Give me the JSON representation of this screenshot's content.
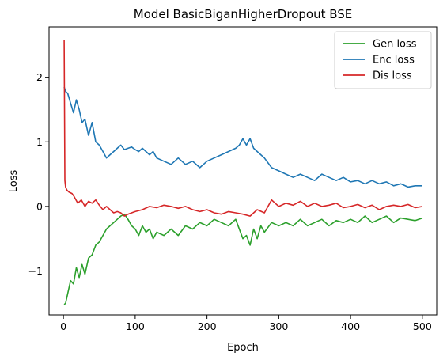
{
  "chart_data": {
    "type": "line",
    "title": "Model BasicBiganHigherDropout BSE",
    "xlabel": "Epoch",
    "ylabel": "Loss",
    "xlim": [
      -20,
      520
    ],
    "ylim": [
      -1.68,
      2.78
    ],
    "xticks": [
      0,
      100,
      200,
      300,
      400,
      500
    ],
    "xtick_labels": [
      "0",
      "100",
      "200",
      "300",
      "400",
      "500"
    ],
    "yticks": [
      -1,
      0,
      1,
      2
    ],
    "ytick_labels": [
      "−1",
      "0",
      "1",
      "2"
    ],
    "legend": {
      "position": "top-right"
    },
    "grid": false,
    "series": [
      {
        "name": "Gen loss",
        "color": "#2ca02c",
        "x": [
          1,
          3,
          6,
          10,
          14,
          18,
          22,
          26,
          30,
          35,
          40,
          45,
          50,
          55,
          60,
          65,
          70,
          75,
          80,
          85,
          90,
          95,
          100,
          105,
          110,
          115,
          120,
          125,
          130,
          140,
          150,
          160,
          170,
          180,
          190,
          200,
          210,
          220,
          230,
          240,
          250,
          255,
          260,
          265,
          270,
          275,
          280,
          290,
          300,
          310,
          320,
          330,
          340,
          350,
          360,
          370,
          380,
          390,
          400,
          410,
          420,
          430,
          440,
          450,
          460,
          470,
          480,
          490,
          500
        ],
        "y": [
          -1.52,
          -1.5,
          -1.35,
          -1.15,
          -1.2,
          -0.95,
          -1.1,
          -0.9,
          -1.05,
          -0.8,
          -0.75,
          -0.6,
          -0.55,
          -0.45,
          -0.35,
          -0.3,
          -0.25,
          -0.2,
          -0.15,
          -0.12,
          -0.2,
          -0.3,
          -0.35,
          -0.45,
          -0.3,
          -0.4,
          -0.35,
          -0.5,
          -0.4,
          -0.45,
          -0.35,
          -0.45,
          -0.3,
          -0.35,
          -0.25,
          -0.3,
          -0.2,
          -0.25,
          -0.3,
          -0.2,
          -0.5,
          -0.45,
          -0.6,
          -0.35,
          -0.5,
          -0.3,
          -0.4,
          -0.25,
          -0.3,
          -0.25,
          -0.3,
          -0.2,
          -0.3,
          -0.25,
          -0.2,
          -0.3,
          -0.22,
          -0.25,
          -0.2,
          -0.25,
          -0.15,
          -0.25,
          -0.2,
          -0.15,
          -0.25,
          -0.18,
          -0.2,
          -0.22,
          -0.18
        ]
      },
      {
        "name": "Enc loss",
        "color": "#1f77b4",
        "x": [
          1,
          3,
          6,
          10,
          14,
          18,
          22,
          26,
          30,
          35,
          40,
          45,
          50,
          55,
          60,
          65,
          70,
          75,
          80,
          85,
          90,
          95,
          100,
          105,
          110,
          115,
          120,
          125,
          130,
          140,
          150,
          160,
          170,
          180,
          190,
          200,
          210,
          220,
          230,
          240,
          245,
          250,
          255,
          260,
          265,
          270,
          275,
          280,
          290,
          300,
          310,
          320,
          330,
          340,
          350,
          360,
          370,
          380,
          390,
          400,
          410,
          420,
          430,
          440,
          450,
          460,
          470,
          480,
          490,
          500
        ],
        "y": [
          1.85,
          1.78,
          1.75,
          1.6,
          1.45,
          1.65,
          1.5,
          1.3,
          1.35,
          1.1,
          1.3,
          1.0,
          0.95,
          0.85,
          0.75,
          0.8,
          0.85,
          0.9,
          0.95,
          0.88,
          0.9,
          0.92,
          0.88,
          0.85,
          0.9,
          0.85,
          0.8,
          0.85,
          0.75,
          0.7,
          0.65,
          0.75,
          0.65,
          0.7,
          0.6,
          0.7,
          0.75,
          0.8,
          0.85,
          0.9,
          0.95,
          1.05,
          0.95,
          1.05,
          0.9,
          0.85,
          0.8,
          0.75,
          0.6,
          0.55,
          0.5,
          0.45,
          0.5,
          0.45,
          0.4,
          0.5,
          0.45,
          0.4,
          0.45,
          0.38,
          0.4,
          0.35,
          0.4,
          0.35,
          0.38,
          0.32,
          0.35,
          0.3,
          0.32,
          0.32
        ]
      },
      {
        "name": "Dis loss",
        "color": "#d62728",
        "x": [
          1,
          2,
          3,
          5,
          8,
          12,
          15,
          20,
          25,
          30,
          35,
          40,
          45,
          50,
          55,
          60,
          65,
          70,
          75,
          80,
          85,
          90,
          95,
          100,
          110,
          120,
          130,
          140,
          150,
          160,
          170,
          180,
          190,
          200,
          210,
          220,
          230,
          240,
          250,
          260,
          270,
          280,
          290,
          295,
          300,
          310,
          320,
          330,
          340,
          350,
          360,
          370,
          380,
          390,
          400,
          410,
          420,
          430,
          440,
          450,
          460,
          470,
          480,
          490,
          500
        ],
        "y": [
          2.58,
          0.4,
          0.3,
          0.25,
          0.22,
          0.2,
          0.15,
          0.05,
          0.1,
          0.0,
          0.08,
          0.05,
          0.1,
          0.02,
          -0.05,
          0.0,
          -0.05,
          -0.1,
          -0.08,
          -0.1,
          -0.15,
          -0.12,
          -0.1,
          -0.08,
          -0.05,
          0.0,
          -0.02,
          0.02,
          0.0,
          -0.03,
          0.0,
          -0.05,
          -0.08,
          -0.05,
          -0.1,
          -0.12,
          -0.08,
          -0.1,
          -0.12,
          -0.15,
          -0.05,
          -0.1,
          0.1,
          0.05,
          0.0,
          0.05,
          0.02,
          0.08,
          0.0,
          0.05,
          0.0,
          0.02,
          0.05,
          -0.02,
          0.0,
          0.03,
          -0.02,
          0.02,
          -0.05,
          0.0,
          0.02,
          0.0,
          0.03,
          -0.02,
          0.0
        ]
      }
    ]
  }
}
